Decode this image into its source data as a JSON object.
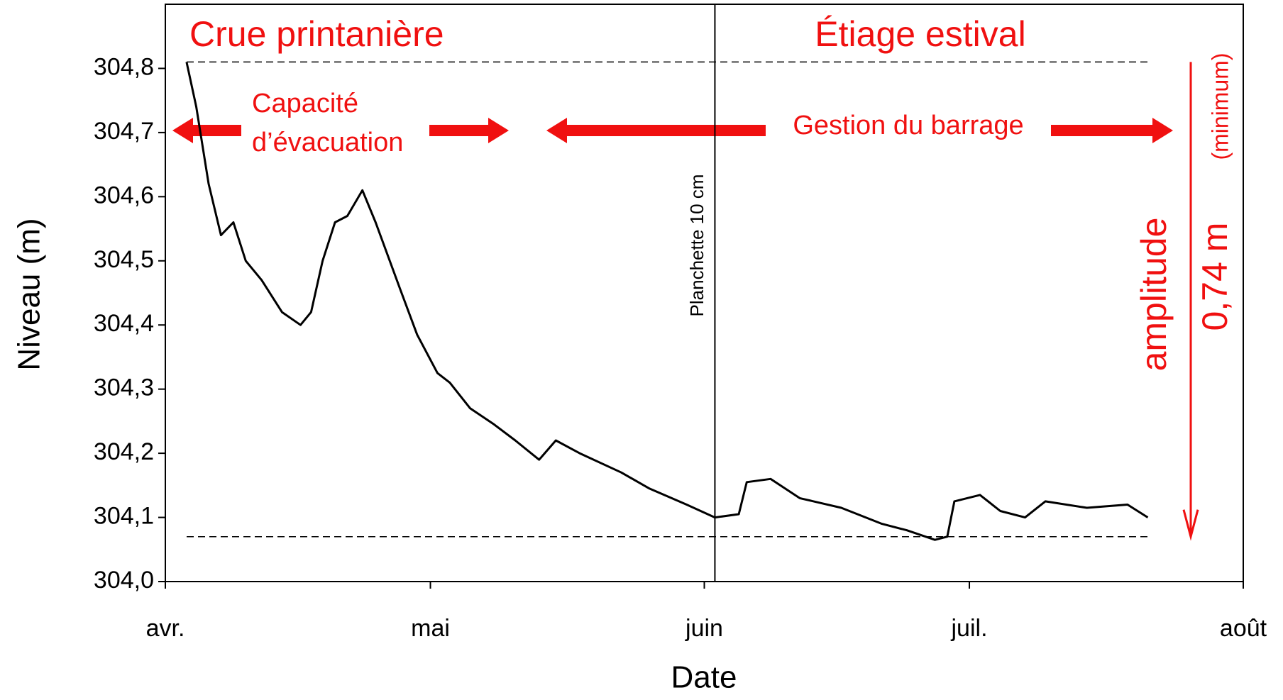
{
  "chart_data": {
    "type": "line",
    "x_label": "Date",
    "y_label": "Niveau (m)",
    "x": [
      2.4,
      3.5,
      4.9,
      6.3,
      7.7,
      9.1,
      10.9,
      13.2,
      15.3,
      16.5,
      17.8,
      19.2,
      20.6,
      22.3,
      23.8,
      26.6,
      28.5,
      30.8,
      32.2,
      34.5,
      37.2,
      39.6,
      42.3,
      44.2,
      46.9,
      51.6,
      54.8,
      59.0,
      62.2,
      64.9,
      65.8,
      68.5,
      71.8,
      76.5,
      81.1,
      83.9,
      87.1,
      88.5,
      89.3,
      92.2,
      94.5,
      97.3,
      99.6,
      104.3,
      108.9,
      111.2
    ],
    "series": [
      {
        "color": "#000000",
        "values": [
          304.81,
          304.74,
          304.62,
          304.54,
          304.56,
          304.5,
          304.47,
          304.42,
          304.4,
          304.42,
          304.5,
          304.56,
          304.57,
          304.61,
          304.56,
          304.455,
          304.385,
          304.325,
          304.31,
          304.27,
          304.245,
          304.22,
          304.19,
          304.22,
          304.2,
          304.17,
          304.145,
          304.12,
          304.1,
          304.105,
          304.155,
          304.16,
          304.13,
          304.115,
          304.09,
          304.08,
          304.065,
          304.07,
          304.125,
          304.135,
          304.11,
          304.1,
          304.125,
          304.115,
          304.12,
          304.1
        ]
      }
    ],
    "xlim": [
      0,
      122
    ],
    "xticks": [
      {
        "value": 0,
        "label": "avr."
      },
      {
        "value": 30,
        "label": "mai"
      },
      {
        "value": 61,
        "label": "juin"
      },
      {
        "value": 91,
        "label": "juil."
      },
      {
        "value": 122,
        "label": "août"
      }
    ],
    "ylim": [
      304.0,
      304.9
    ],
    "yticks": [
      {
        "value": 304.0,
        "label": "304,0"
      },
      {
        "value": 304.1,
        "label": "304,1"
      },
      {
        "value": 304.2,
        "label": "304,2"
      },
      {
        "value": 304.3,
        "label": "304,3"
      },
      {
        "value": 304.4,
        "label": "304,4"
      },
      {
        "value": 304.5,
        "label": "304,5"
      },
      {
        "value": 304.6,
        "label": "304,6"
      },
      {
        "value": 304.7,
        "label": "304,7"
      },
      {
        "value": 304.8,
        "label": "304,8"
      }
    ],
    "reference_lines": [
      304.81,
      304.07
    ],
    "vertical_line": 62.2,
    "annotations": {
      "spring": "Crue printanière",
      "summer": "Étiage estival",
      "capacity_1": "Capacité",
      "capacity_2": "d’évacuation",
      "management": "Gestion du barrage",
      "plank": "Planchette 10 cm",
      "amplitude": "amplitude",
      "amplitude_value": "0,74 m",
      "minimum": "(minimum)"
    }
  }
}
